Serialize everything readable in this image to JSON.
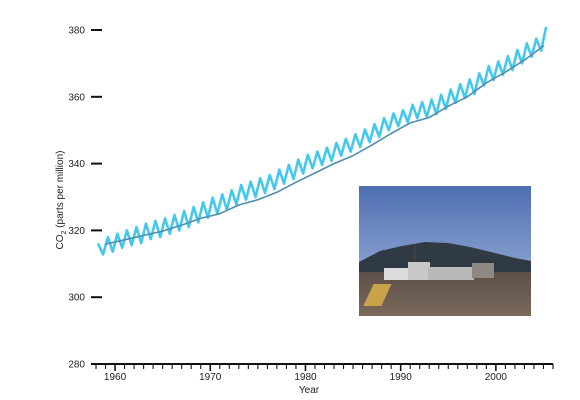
{
  "chart_data": {
    "type": "line",
    "xlabel": "Year",
    "ylabel_main": "CO",
    "ylabel_sub": "2",
    "ylabel_rest": " (parts per million)",
    "xlim": [
      1958,
      2006
    ],
    "ylim": [
      280,
      380
    ],
    "x_ticks": [
      1960,
      1970,
      1980,
      1990,
      2000
    ],
    "x_minor_step": 1,
    "y_ticks": [
      280,
      300,
      320,
      340,
      360,
      380
    ],
    "grid": false,
    "series": [
      {
        "kind": "seasonal",
        "color": "#45c8ef",
        "x": [
          1958.25,
          1958.75,
          1959.25,
          1959.75,
          1960.25,
          1960.75,
          1961.25,
          1961.75,
          1962.25,
          1962.75,
          1963.25,
          1963.75,
          1964.25,
          1964.75,
          1965.25,
          1965.75,
          1966.25,
          1966.75,
          1967.25,
          1967.75,
          1968.25,
          1968.75,
          1969.25,
          1969.75,
          1970.25,
          1970.75,
          1971.25,
          1971.75,
          1972.25,
          1972.75,
          1973.25,
          1973.75,
          1974.25,
          1974.75,
          1975.25,
          1975.75,
          1976.25,
          1976.75,
          1977.25,
          1977.75,
          1978.25,
          1978.75,
          1979.25,
          1979.75,
          1980.25,
          1980.75,
          1981.25,
          1981.75,
          1982.25,
          1982.75,
          1983.25,
          1983.75,
          1984.25,
          1984.75,
          1985.25,
          1985.75,
          1986.25,
          1986.75,
          1987.25,
          1987.75,
          1988.25,
          1988.75,
          1989.25,
          1989.75,
          1990.25,
          1990.75,
          1991.25,
          1991.75,
          1992.25,
          1992.75,
          1993.25,
          1993.75,
          1994.25,
          1994.75,
          1995.25,
          1995.75,
          1996.25,
          1996.75,
          1997.25,
          1997.75,
          1998.25,
          1998.75,
          1999.25,
          1999.75,
          2000.25,
          2000.75,
          2001.25,
          2001.75,
          2002.25,
          2002.75,
          2003.25,
          2003.75,
          2004.25,
          2004.75,
          2005.25
        ],
        "y": [
          315.8,
          312.8,
          318.0,
          313.6,
          319.0,
          314.8,
          320.0,
          315.6,
          321.0,
          316.2,
          322.0,
          317.4,
          322.8,
          318.0,
          323.6,
          319.0,
          324.6,
          320.0,
          325.8,
          321.0,
          327.0,
          322.4,
          328.4,
          323.8,
          329.8,
          325.0,
          330.8,
          326.2,
          332.0,
          327.8,
          333.6,
          329.2,
          334.6,
          330.0,
          335.6,
          331.2,
          336.6,
          332.4,
          338.2,
          334.0,
          339.6,
          335.4,
          341.2,
          337.0,
          342.6,
          338.6,
          343.6,
          339.6,
          344.8,
          340.8,
          346.2,
          342.4,
          347.4,
          343.6,
          348.8,
          345.0,
          350.2,
          346.4,
          351.8,
          348.0,
          353.6,
          350.0,
          355.0,
          351.2,
          356.0,
          352.4,
          357.6,
          353.6,
          358.4,
          354.0,
          359.2,
          354.8,
          360.6,
          356.4,
          362.2,
          358.2,
          363.8,
          359.6,
          365.2,
          360.8,
          367.0,
          363.4,
          369.2,
          365.0,
          370.6,
          366.6,
          372.2,
          368.0,
          374.0,
          370.0,
          376.0,
          372.0,
          377.4,
          373.8,
          380.6
        ]
      },
      {
        "kind": "trend",
        "color": "#4f8fae",
        "x": [
          1959,
          1961,
          1963,
          1965,
          1967,
          1969,
          1971,
          1973,
          1975,
          1977,
          1979,
          1981,
          1983,
          1985,
          1987,
          1989,
          1991,
          1993,
          1995,
          1997,
          1999,
          2001,
          2003,
          2005
        ],
        "y": [
          315.9,
          317.2,
          318.5,
          319.8,
          321.6,
          323.6,
          325.0,
          327.6,
          329.2,
          331.4,
          334.4,
          337.2,
          340.0,
          342.4,
          345.6,
          349.0,
          352.2,
          353.8,
          357.2,
          360.0,
          364.2,
          367.4,
          371.0,
          375.2
        ]
      }
    ],
    "inset_photo": {
      "description_icon": "observatory-photo",
      "sky_color": "#6f8fc6",
      "mountain_color": "#2e3840",
      "ground_color": "#6a5d52"
    }
  }
}
